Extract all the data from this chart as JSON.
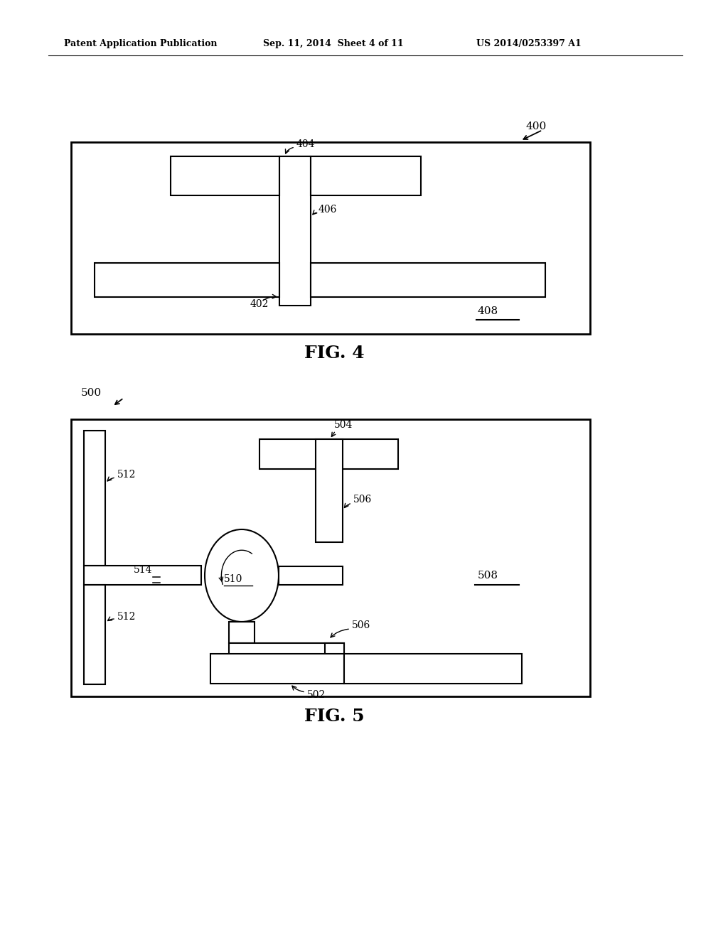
{
  "bg_color": "#ffffff",
  "header_left": "Patent Application Publication",
  "header_mid": "Sep. 11, 2014  Sheet 4 of 11",
  "header_right": "US 2014/0253397 A1",
  "fig4_label": "FIG. 4",
  "fig5_label": "FIG. 5",
  "fig4_ref": "400",
  "fig4_408": "408",
  "fig4_404": "404",
  "fig4_406": "406",
  "fig4_402": "402",
  "fig5_ref": "500",
  "fig5_508": "508",
  "fig5_504": "504",
  "fig5_506a": "506",
  "fig5_506b": "506",
  "fig5_502": "502",
  "fig5_510": "510",
  "fig5_512a": "512",
  "fig5_512b": "512",
  "fig5_514": "514"
}
